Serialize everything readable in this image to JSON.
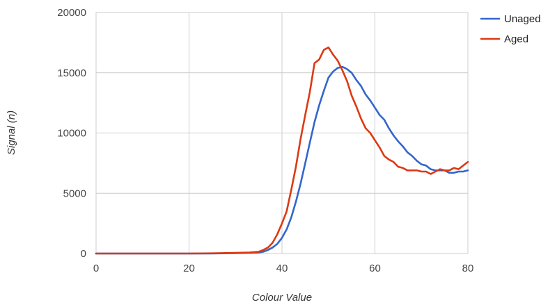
{
  "chart_data": {
    "type": "line",
    "title": "",
    "xlabel": "Colour Value",
    "ylabel": "Signal (n)",
    "xlim": [
      0,
      80
    ],
    "ylim": [
      0,
      20000
    ],
    "x_ticks": [
      0,
      20,
      40,
      60,
      80
    ],
    "y_ticks": [
      0,
      5000,
      10000,
      15000,
      20000
    ],
    "grid": true,
    "legend_position": "top-right",
    "series": [
      {
        "name": "Unaged",
        "color": "#3366cc",
        "x": [
          0,
          10,
          20,
          25,
          30,
          33,
          35,
          36,
          37,
          38,
          39,
          40,
          41,
          42,
          43,
          44,
          45,
          46,
          47,
          48,
          49,
          50,
          51,
          52,
          53,
          54,
          55,
          56,
          57,
          58,
          59,
          60,
          61,
          62,
          63,
          64,
          65,
          66,
          67,
          68,
          69,
          70,
          71,
          72,
          73,
          74,
          75,
          76,
          77,
          78,
          79,
          80
        ],
        "y": [
          0,
          0,
          0,
          0,
          30,
          50,
          80,
          150,
          300,
          500,
          800,
          1300,
          2000,
          3000,
          4300,
          5800,
          7500,
          9200,
          10900,
          12300,
          13500,
          14600,
          15100,
          15400,
          15500,
          15300,
          15000,
          14400,
          13900,
          13200,
          12700,
          12100,
          11500,
          11100,
          10400,
          9800,
          9300,
          8900,
          8400,
          8100,
          7700,
          7400,
          7300,
          7000,
          6900,
          6900,
          6900,
          6700,
          6700,
          6800,
          6800,
          6900
        ]
      },
      {
        "name": "Aged",
        "color": "#dc3912",
        "x": [
          0,
          10,
          20,
          25,
          30,
          33,
          35,
          36,
          37,
          38,
          39,
          40,
          41,
          42,
          43,
          44,
          45,
          46,
          47,
          48,
          49,
          50,
          51,
          52,
          53,
          54,
          55,
          56,
          57,
          58,
          59,
          60,
          61,
          62,
          63,
          64,
          65,
          66,
          67,
          68,
          69,
          70,
          71,
          72,
          73,
          74,
          75,
          76,
          77,
          78,
          79,
          80
        ],
        "y": [
          0,
          0,
          0,
          20,
          60,
          80,
          150,
          300,
          500,
          900,
          1600,
          2500,
          3500,
          5300,
          7200,
          9500,
          11500,
          13400,
          15800,
          16100,
          16900,
          17100,
          16500,
          16000,
          15200,
          14300,
          13100,
          12200,
          11200,
          10400,
          10000,
          9400,
          8800,
          8100,
          7800,
          7600,
          7200,
          7100,
          6900,
          6900,
          6900,
          6800,
          6800,
          6600,
          6800,
          7000,
          6900,
          6900,
          7100,
          7000,
          7300,
          7600
        ]
      }
    ]
  }
}
